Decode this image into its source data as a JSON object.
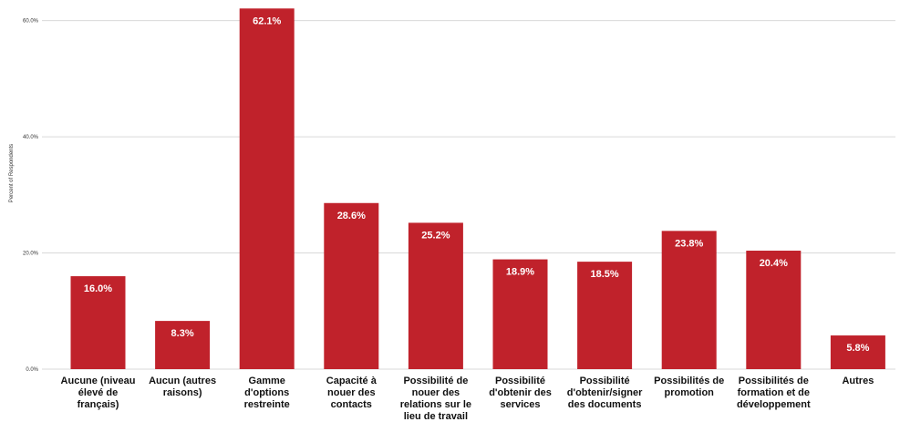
{
  "chart_data": {
    "type": "bar",
    "categories": [
      [
        "Aucune (niveau",
        "élevé de",
        "français)"
      ],
      [
        "Aucun (autres",
        "raisons)"
      ],
      [
        "Gamme",
        "d'options",
        "restreinte"
      ],
      [
        "Capacité à",
        "nouer des",
        "contacts"
      ],
      [
        "Possibilité de",
        "nouer des",
        "relations sur le",
        "lieu de travail"
      ],
      [
        "Possibilité",
        "d'obtenir des",
        "services"
      ],
      [
        "Possibilité",
        "d'obtenir/signer",
        "des documents"
      ],
      [
        "Possibilités de",
        "promotion"
      ],
      [
        "Possibilités de",
        "formation et de",
        "développement"
      ],
      [
        "Autres"
      ]
    ],
    "values": [
      16.0,
      8.3,
      62.1,
      28.6,
      25.2,
      18.9,
      18.5,
      23.8,
      20.4,
      5.8
    ],
    "data_labels": [
      "16.0%",
      "8.3%",
      "62.1%",
      "28.6%",
      "25.2%",
      "18.9%",
      "18.5%",
      "23.8%",
      "20.4%",
      "5.8%"
    ],
    "ylabel": "Percent of Respondents",
    "yticks": [
      {
        "value": 0,
        "label": "0.0%"
      },
      {
        "value": 20,
        "label": "20.0%"
      },
      {
        "value": 40,
        "label": "40.0%"
      },
      {
        "value": 60,
        "label": "60.0%"
      }
    ],
    "ylim": [
      0,
      63
    ],
    "grid": true,
    "bar_color": "#c0222b"
  }
}
